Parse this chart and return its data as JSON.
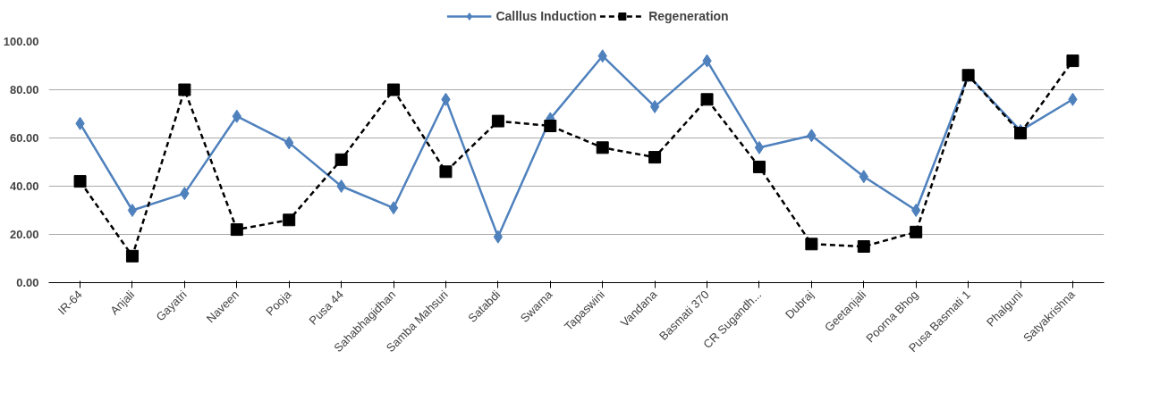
{
  "chart_data": {
    "type": "line",
    "categories": [
      "IR-64",
      "Anjali",
      "Gayatri",
      "Naveen",
      "Pooja",
      "Pusa 44",
      "Sahabhagidhan",
      "Samba Mahsuri",
      "Satabdi",
      "Swarna",
      "Tapaswini",
      "Vandana",
      "Basmati 370",
      "CR Sugandh...",
      "Dubraj",
      "Geetanjali",
      "Poorna Bhog",
      "Pusa Basmati 1",
      "Phalguni",
      "Satyakrishna"
    ],
    "series": [
      {
        "name": "Calllus Induction",
        "color": "#4f81bd",
        "marker": "diamond",
        "line_style": "solid",
        "values": [
          66,
          30,
          37,
          69,
          58,
          40,
          31,
          76,
          19,
          68,
          94,
          73,
          92,
          56,
          61,
          44,
          30,
          86,
          63,
          76
        ]
      },
      {
        "name": "Regeneration",
        "color": "#000000",
        "marker": "square",
        "line_style": "dashed",
        "values": [
          42,
          11,
          80,
          22,
          26,
          51,
          80,
          46,
          67,
          65,
          56,
          52,
          76,
          48,
          16,
          15,
          21,
          86,
          62,
          92
        ]
      }
    ],
    "ylim": [
      0,
      100
    ],
    "yticks": [
      {
        "value": 0,
        "label": "0.00"
      },
      {
        "value": 20,
        "label": "20.00"
      },
      {
        "value": 40,
        "label": "40.00"
      },
      {
        "value": 60,
        "label": "60.00"
      },
      {
        "value": 80,
        "label": "80.00"
      },
      {
        "value": 100,
        "label": "100.00"
      }
    ],
    "grid": "y",
    "legend": "top"
  }
}
